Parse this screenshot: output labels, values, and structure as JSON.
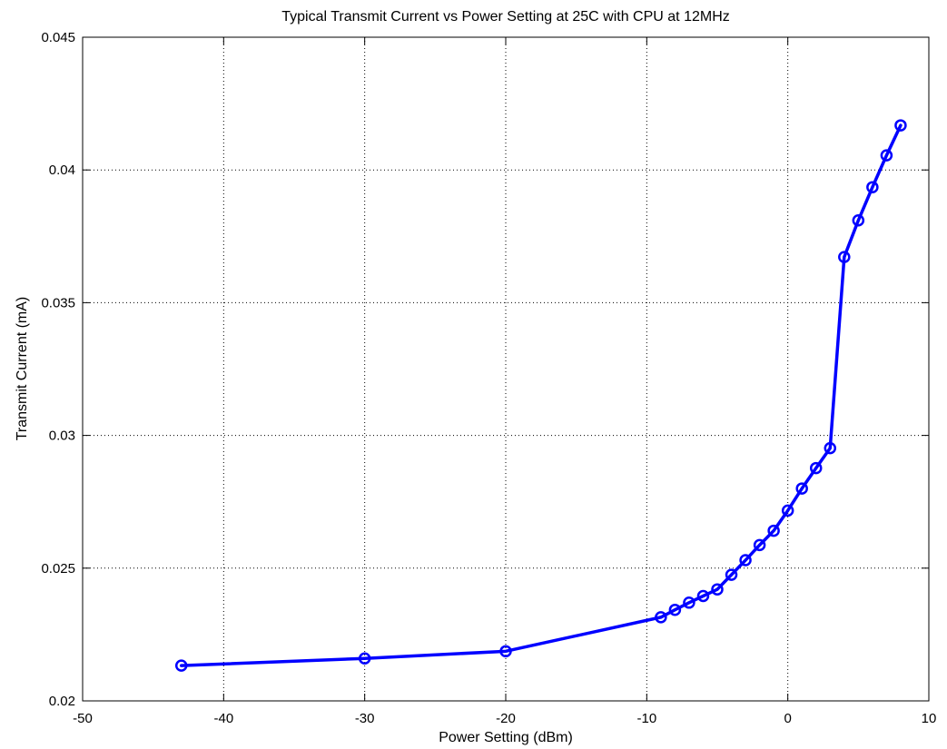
{
  "chart_data": {
    "type": "line",
    "title": "Typical Transmit Current vs Power Setting at 25C with CPU at 12MHz",
    "xlabel": "Power Setting (dBm)",
    "ylabel": "Transmit Current (mA)",
    "xlim": [
      -50,
      10
    ],
    "ylim": [
      0.02,
      0.045
    ],
    "xticks": [
      -50,
      -40,
      -30,
      -20,
      -10,
      0,
      10
    ],
    "xtick_labels": [
      "-50",
      "-40",
      "-30",
      "-20",
      "-10",
      "0",
      "10"
    ],
    "yticks": [
      0.02,
      0.025,
      0.03,
      0.035,
      0.04,
      0.045
    ],
    "ytick_labels": [
      "0.02",
      "0.025",
      "0.03",
      "0.035",
      "0.04",
      "0.045"
    ],
    "grid": true,
    "legend": "none",
    "series": [
      {
        "color": "#0000ff",
        "marker": "circle",
        "x": [
          -43,
          -30,
          -20,
          -9,
          -8,
          -7,
          -6,
          -5,
          -4,
          -3,
          -2,
          -1,
          0,
          1,
          2,
          3,
          4,
          5,
          6,
          7,
          8
        ],
        "y": [
          0.02133,
          0.0216,
          0.02187,
          0.02315,
          0.02343,
          0.0237,
          0.02395,
          0.0242,
          0.02475,
          0.0253,
          0.02587,
          0.02641,
          0.02717,
          0.028,
          0.02877,
          0.02952,
          0.03672,
          0.0381,
          0.03935,
          0.04055,
          0.04168
        ]
      }
    ]
  }
}
